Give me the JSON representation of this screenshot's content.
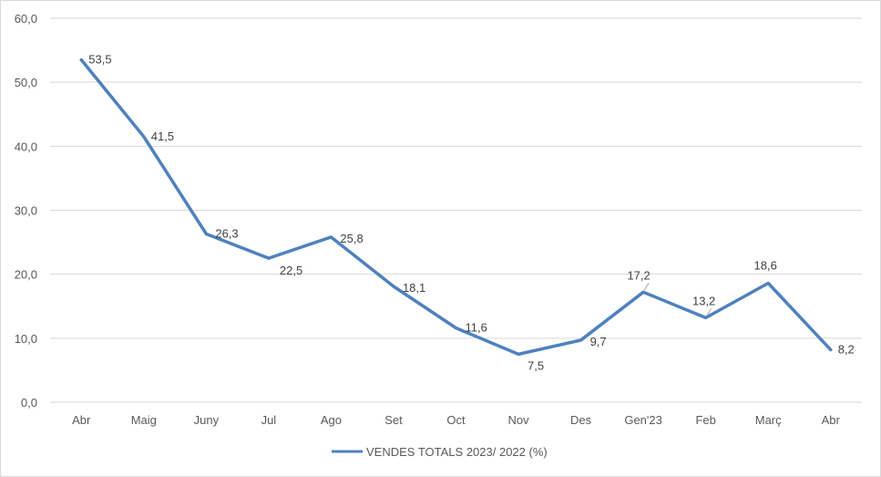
{
  "chart_data": {
    "type": "line",
    "categories": [
      "Abr",
      "Maig",
      "Juny",
      "Jul",
      "Ago",
      "Set",
      "Oct",
      "Nov",
      "Des",
      "Gen'23",
      "Feb",
      "Març",
      "Abr"
    ],
    "series": [
      {
        "name": "VENDES TOTALS 2023/ 2022 (%)",
        "values": [
          53.5,
          41.5,
          26.3,
          22.5,
          25.8,
          18.1,
          11.6,
          7.5,
          9.7,
          17.2,
          13.2,
          18.6,
          8.2
        ],
        "labels": [
          "53,5",
          "41,5",
          "26,3",
          "22,5",
          "25,8",
          "18,1",
          "11,6",
          "7,5",
          "9,7",
          "17,2",
          "13,2",
          "18,6",
          "8,2"
        ],
        "color": "#4f81bd"
      }
    ],
    "yticks": [
      "0,0",
      "10,0",
      "20,0",
      "30,0",
      "40,0",
      "50,0",
      "60,0"
    ],
    "ylim": [
      0,
      60
    ],
    "grid": true,
    "legend": "bottom",
    "gridColor": "#d9d9d9"
  }
}
